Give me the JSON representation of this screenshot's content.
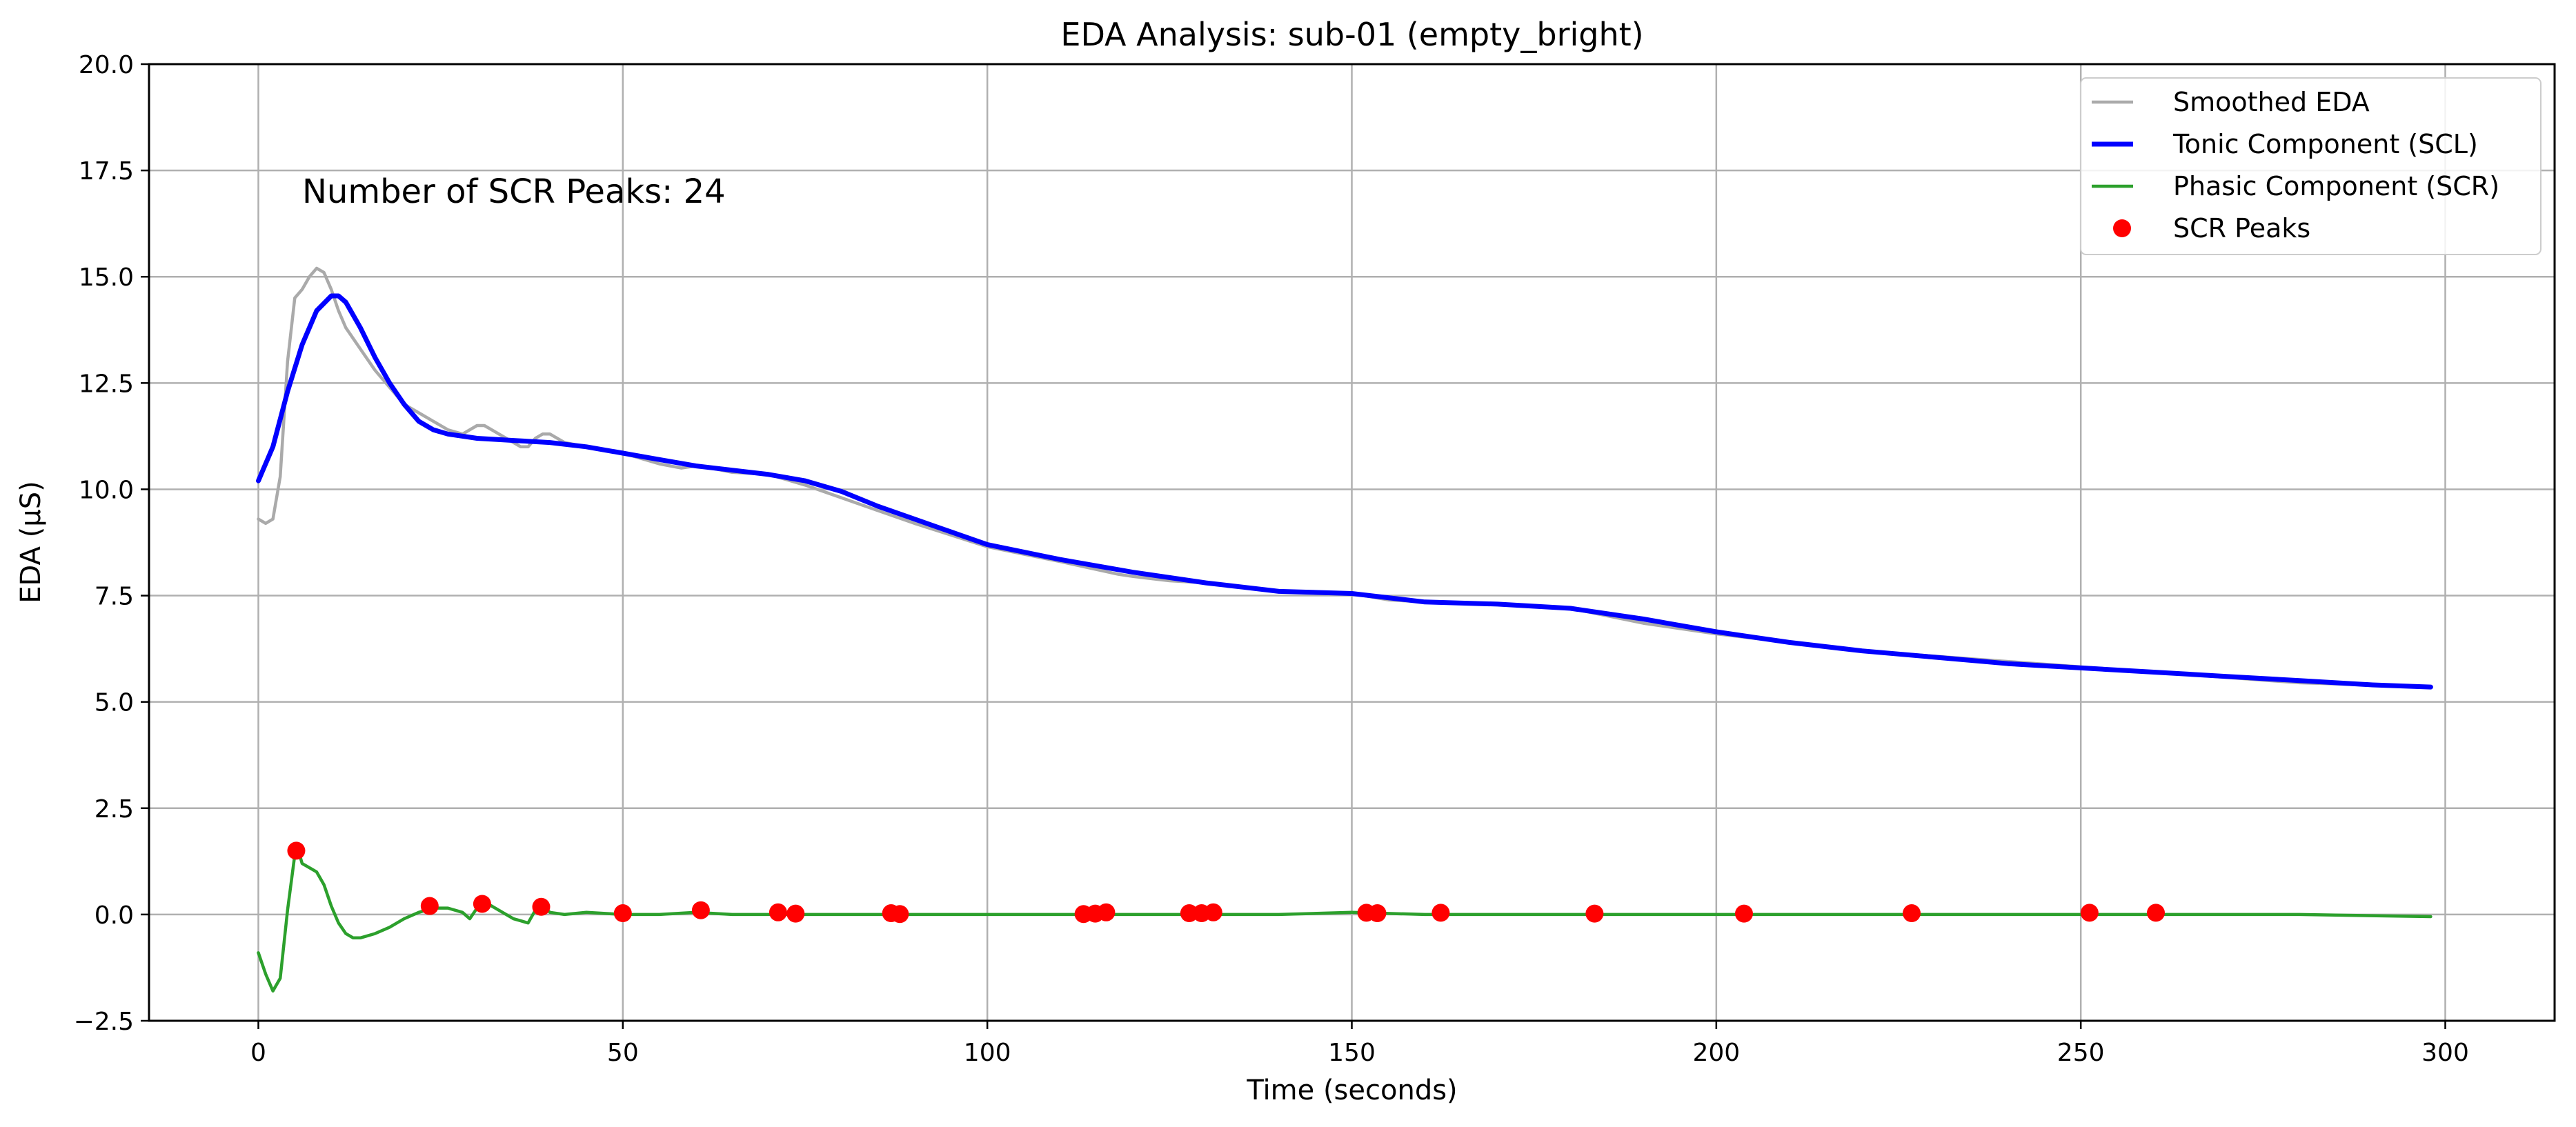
{
  "chart_data": {
    "type": "line",
    "title": "EDA Analysis: sub-01 (empty_bright)",
    "xlabel": "Time (seconds)",
    "ylabel": "EDA (µS)",
    "xlim": [
      -15,
      315
    ],
    "ylim": [
      -2.5,
      20
    ],
    "xticks": [
      0,
      50,
      100,
      150,
      200,
      250,
      300
    ],
    "xtick_labels": [
      "0",
      "50",
      "100",
      "150",
      "200",
      "250",
      "300"
    ],
    "yticks": [
      -2.5,
      0,
      2.5,
      5,
      7.5,
      10,
      12.5,
      15,
      17.5,
      20
    ],
    "ytick_labels": [
      "−2.5",
      "0.0",
      "2.5",
      "5.0",
      "7.5",
      "10.0",
      "12.5",
      "15.0",
      "17.5",
      "20.0"
    ],
    "grid": true,
    "legend_position": "top-right",
    "annotation": {
      "text": "Number of SCR Peaks: 24",
      "color": "#ff0000"
    },
    "series": [
      {
        "name": "Smoothed EDA",
        "kind": "line",
        "color": "#aaaaaa",
        "x": [
          0,
          1,
          2,
          3,
          4,
          5,
          6,
          7,
          8,
          9,
          10,
          11,
          12,
          14,
          16,
          18,
          20,
          22,
          24,
          26,
          28,
          30,
          31,
          32,
          34,
          36,
          37,
          38,
          39,
          40,
          42,
          45,
          50,
          55,
          58,
          60,
          62,
          65,
          70,
          75,
          80,
          90,
          100,
          110,
          118,
          120,
          125,
          130,
          135,
          140,
          150,
          155,
          160,
          170,
          180,
          190,
          200,
          220,
          240,
          260,
          280,
          298
        ],
        "y": [
          9.3,
          9.2,
          9.3,
          10.3,
          13.0,
          14.5,
          14.7,
          15.0,
          15.2,
          15.1,
          14.7,
          14.2,
          13.8,
          13.3,
          12.8,
          12.4,
          12.0,
          11.8,
          11.6,
          11.4,
          11.3,
          11.5,
          11.5,
          11.4,
          11.2,
          11.0,
          11.0,
          11.2,
          11.3,
          11.3,
          11.1,
          11.0,
          10.85,
          10.6,
          10.5,
          10.55,
          10.5,
          10.4,
          10.35,
          10.1,
          9.8,
          9.2,
          8.65,
          8.3,
          8.0,
          7.95,
          7.85,
          7.8,
          7.7,
          7.6,
          7.55,
          7.4,
          7.35,
          7.3,
          7.2,
          6.85,
          6.6,
          6.2,
          5.95,
          5.7,
          5.45,
          5.35
        ]
      },
      {
        "name": "Tonic Component (SCL)",
        "kind": "line",
        "color": "#0000ff",
        "x": [
          0,
          2,
          4,
          6,
          8,
          10,
          11,
          12,
          14,
          16,
          18,
          20,
          22,
          24,
          26,
          28,
          30,
          35,
          40,
          45,
          50,
          55,
          60,
          65,
          70,
          75,
          80,
          85,
          90,
          95,
          100,
          110,
          120,
          130,
          135,
          140,
          150,
          155,
          160,
          170,
          180,
          190,
          200,
          210,
          220,
          230,
          240,
          250,
          260,
          270,
          280,
          290,
          298
        ],
        "y": [
          10.2,
          11.0,
          12.3,
          13.4,
          14.2,
          14.55,
          14.55,
          14.4,
          13.8,
          13.1,
          12.5,
          12.0,
          11.6,
          11.4,
          11.3,
          11.25,
          11.2,
          11.15,
          11.1,
          11.0,
          10.85,
          10.7,
          10.55,
          10.45,
          10.35,
          10.2,
          9.95,
          9.6,
          9.3,
          9.0,
          8.7,
          8.35,
          8.05,
          7.8,
          7.7,
          7.6,
          7.55,
          7.45,
          7.35,
          7.3,
          7.2,
          6.95,
          6.65,
          6.4,
          6.2,
          6.05,
          5.9,
          5.8,
          5.7,
          5.6,
          5.5,
          5.4,
          5.35
        ]
      },
      {
        "name": "Phasic Component (SCR)",
        "kind": "line",
        "color": "#2ca02c",
        "x": [
          0,
          1,
          2,
          3,
          4,
          5,
          5.5,
          6,
          7,
          8,
          9,
          10,
          11,
          12,
          13,
          14,
          16,
          18,
          20,
          22,
          24,
          26,
          28,
          29,
          30,
          31,
          32,
          34,
          35,
          36,
          37,
          38,
          39,
          40,
          42,
          45,
          50,
          55,
          60,
          65,
          70,
          80,
          90,
          100,
          110,
          120,
          130,
          140,
          150,
          160,
          170,
          180,
          190,
          200,
          220,
          240,
          260,
          280,
          298
        ],
        "y": [
          -0.9,
          -1.4,
          -1.8,
          -1.5,
          0.1,
          1.4,
          1.5,
          1.2,
          1.1,
          1.0,
          0.7,
          0.2,
          -0.2,
          -0.45,
          -0.55,
          -0.55,
          -0.45,
          -0.3,
          -0.1,
          0.05,
          0.15,
          0.15,
          0.05,
          -0.1,
          0.15,
          0.3,
          0.2,
          0.0,
          -0.1,
          -0.15,
          -0.2,
          0.1,
          0.2,
          0.05,
          0.0,
          0.05,
          0.0,
          0.0,
          0.05,
          0.0,
          0.0,
          0.0,
          0.0,
          0.0,
          0.0,
          0.0,
          0.0,
          0.0,
          0.05,
          0.0,
          0.0,
          0.0,
          0.0,
          0.0,
          0.0,
          0.0,
          0.0,
          0.0,
          -0.05
        ]
      },
      {
        "name": "SCR Peaks",
        "kind": "scatter",
        "color": "#ff0000",
        "x": [
          5.2,
          23.5,
          30.7,
          38.8,
          50.0,
          60.7,
          71.3,
          73.7,
          86.8,
          88.0,
          113.2,
          114.8,
          116.3,
          127.7,
          129.4,
          131.0,
          152.0,
          153.5,
          162.2,
          183.3,
          203.8,
          226.8,
          251.2,
          260.3
        ],
        "y": [
          1.5,
          0.2,
          0.25,
          0.18,
          0.03,
          0.1,
          0.05,
          0.02,
          0.03,
          0.01,
          0.01,
          0.02,
          0.05,
          0.03,
          0.03,
          0.05,
          0.04,
          0.03,
          0.04,
          0.02,
          0.02,
          0.03,
          0.04,
          0.04
        ]
      }
    ]
  }
}
